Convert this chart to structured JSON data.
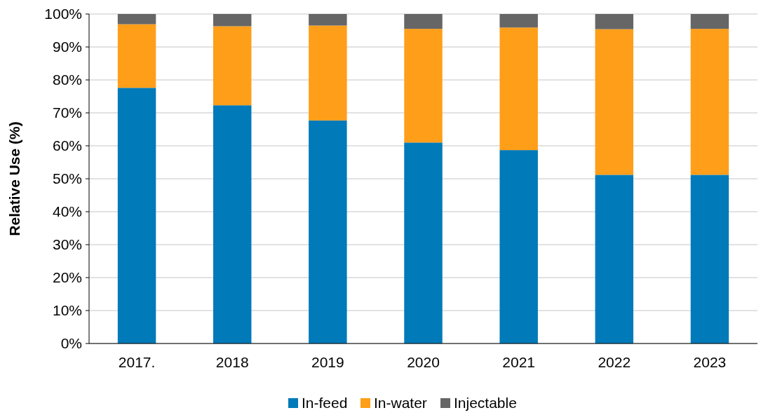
{
  "chart_data": {
    "type": "bar",
    "stacked": true,
    "ylabel": "Relative Use (%)",
    "categories": [
      "2017.",
      "2018",
      "2019",
      "2020",
      "2021",
      "2022",
      "2023"
    ],
    "series": [
      {
        "name": "In-feed",
        "color": "#007ab8",
        "values": [
          77.6,
          72.3,
          67.7,
          61.0,
          58.7,
          51.2,
          51.2
        ]
      },
      {
        "name": "In-water",
        "color": "#ff9e18",
        "values": [
          19.3,
          24.0,
          28.8,
          34.5,
          37.2,
          44.2,
          44.3
        ]
      },
      {
        "name": "Injectable",
        "color": "#666666",
        "values": [
          3.1,
          3.7,
          3.5,
          4.5,
          4.1,
          4.6,
          4.5
        ]
      }
    ],
    "ylim": [
      0,
      100
    ],
    "yticks": [
      {
        "value": 0,
        "label": "0%"
      },
      {
        "value": 10,
        "label": "10%"
      },
      {
        "value": 20,
        "label": "20%"
      },
      {
        "value": 30,
        "label": "30%"
      },
      {
        "value": 40,
        "label": "40%"
      },
      {
        "value": 50,
        "label": "50%"
      },
      {
        "value": 60,
        "label": "60%"
      },
      {
        "value": 70,
        "label": "70%"
      },
      {
        "value": 80,
        "label": "80%"
      },
      {
        "value": 90,
        "label": "90%"
      },
      {
        "value": 100,
        "label": "100%"
      }
    ],
    "grid": "y",
    "legend": "bottom"
  }
}
